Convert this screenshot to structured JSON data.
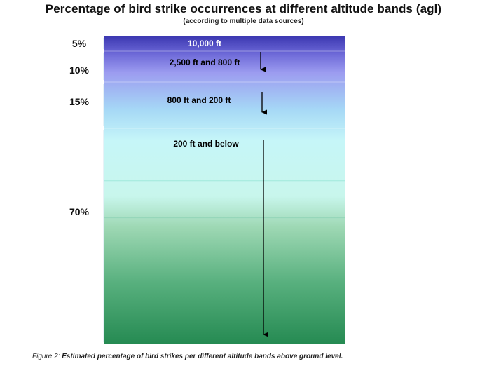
{
  "title": "Percentage of bird strike occurrences at different altitude bands (agl)",
  "subtitle": "(according to multiple data sources)",
  "caption": {
    "prefix": "Figure 2:",
    "text": "Estimated percentage of bird strikes per different altitude bands above ground level."
  },
  "chart_data": {
    "type": "bar",
    "orientation": "stacked-vertical-band",
    "title": "Percentage of bird strike occurrences at different altitude bands (agl)",
    "subtitle": "(according to multiple data sources)",
    "bands": [
      {
        "percent": 5,
        "percent_label": "5%",
        "band_label": "10,000 ft"
      },
      {
        "percent": 10,
        "percent_label": "10%",
        "band_label": "2,500 ft and 800 ft"
      },
      {
        "percent": 15,
        "percent_label": "15%",
        "band_label": "800 ft and 200 ft"
      },
      {
        "percent": 70,
        "percent_label": "70%",
        "band_label": "200 ft and below"
      }
    ],
    "colors": {
      "top": "#4a44b8",
      "upper": "#9a98ee",
      "mid": "#a8dcf6",
      "light": "#ccfaf8",
      "bottom": "#2a8a55"
    },
    "grid": false,
    "legend": "none"
  }
}
